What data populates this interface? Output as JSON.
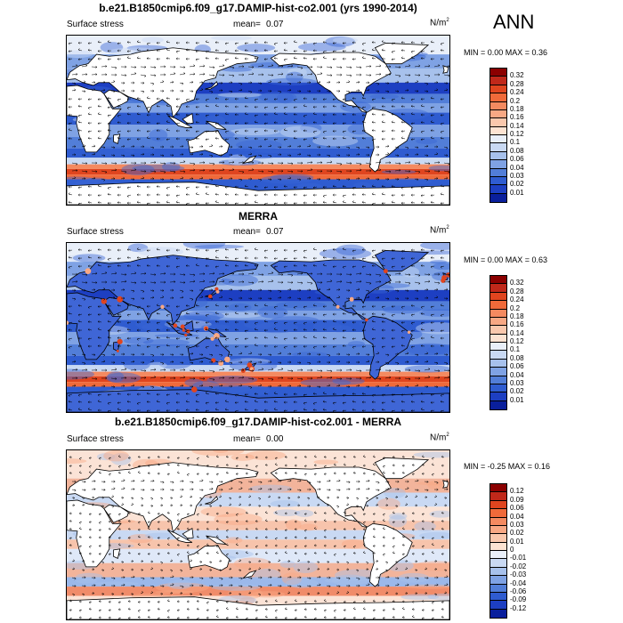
{
  "season": "ANN",
  "panels": [
    {
      "title": "b.e21.B1850cmip6.f09_g17.DAMIP-hist-co2.001 (yrs 1990-2014)",
      "left_label": "Surface stress",
      "mean_label": "mean=",
      "mean_value": "0.07",
      "units": "N/m",
      "units_sup": "2",
      "minmax": "MIN =  0.00 MAX =  0.36",
      "ticks": [
        "0.32",
        "0.28",
        "0.24",
        "0.2",
        "0.18",
        "0.16",
        "0.14",
        "0.12",
        "0.1",
        "0.08",
        "0.06",
        "0.04",
        "0.03",
        "0.02",
        "0.01"
      ],
      "colors": [
        "#8b0000",
        "#c0281a",
        "#e0451f",
        "#f06a3a",
        "#f48a60",
        "#f8a884",
        "#fac8ad",
        "#fde3d2",
        "#e9eff9",
        "#c9d9f3",
        "#a7c1ec",
        "#7fa2e4",
        "#527ed8",
        "#2f5cd0",
        "#1d3fc2",
        "#0a1f9c"
      ],
      "map_style": "model"
    },
    {
      "title": "MERRA",
      "left_label": "Surface stress",
      "mean_label": "mean=",
      "mean_value": "0.07",
      "units": "N/m",
      "units_sup": "2",
      "minmax": "MIN =  0.00 MAX =  0.63",
      "ticks": [
        "0.32",
        "0.28",
        "0.24",
        "0.2",
        "0.18",
        "0.16",
        "0.14",
        "0.12",
        "0.1",
        "0.08",
        "0.06",
        "0.04",
        "0.03",
        "0.02",
        "0.01"
      ],
      "colors": [
        "#8b0000",
        "#c0281a",
        "#e0451f",
        "#f06a3a",
        "#f48a60",
        "#f8a884",
        "#fac8ad",
        "#fde3d2",
        "#e9eff9",
        "#c9d9f3",
        "#a7c1ec",
        "#7fa2e4",
        "#527ed8",
        "#2f5cd0",
        "#1d3fc2",
        "#0a1f9c"
      ],
      "map_style": "obs"
    },
    {
      "title": "b.e21.B1850cmip6.f09_g17.DAMIP-hist-co2.001 - MERRA",
      "left_label": "Surface stress",
      "mean_label": "mean=",
      "mean_value": "0.00",
      "units": "N/m",
      "units_sup": "2",
      "minmax": "MIN = -0.25 MAX =  0.16",
      "ticks": [
        "0.12",
        "0.09",
        "0.06",
        "0.04",
        "0.03",
        "0.02",
        "0.01",
        "0",
        "-0.01",
        "-0.02",
        "-0.03",
        "-0.04",
        "-0.06",
        "-0.09",
        "-0.12"
      ],
      "colors": [
        "#8b0000",
        "#c0281a",
        "#e0451f",
        "#f06a3a",
        "#f48a60",
        "#f8a884",
        "#fac8ad",
        "#fde3d2",
        "#e9eff9",
        "#c9d9f3",
        "#a7c1ec",
        "#7fa2e4",
        "#527ed8",
        "#2f5cd0",
        "#1d3fc2",
        "#0a1f9c"
      ],
      "map_style": "diff"
    }
  ]
}
